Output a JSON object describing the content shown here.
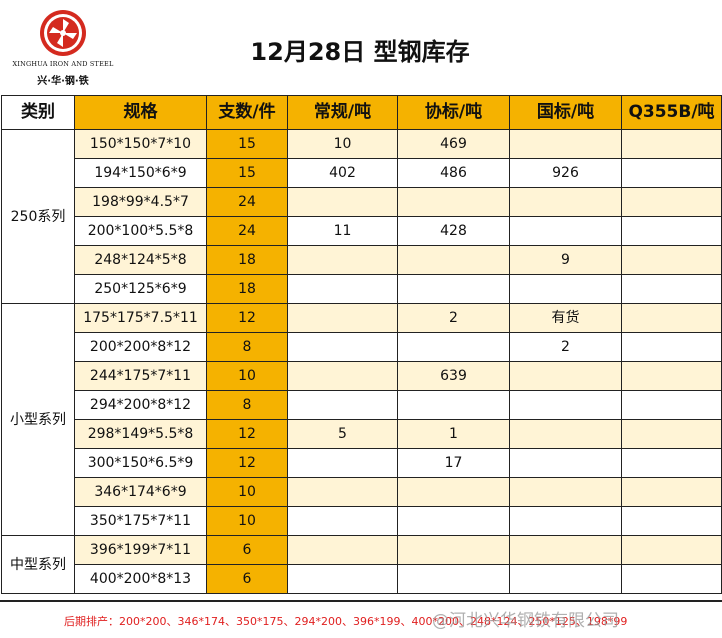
{
  "logo": {
    "brand_en": "XINGHUA IRON AND STEEL",
    "brand_cn": "兴·华·钢·铁",
    "logo_color": "#d42a1f"
  },
  "title": "12月28日 型钢库存",
  "headers": {
    "category": "类别",
    "spec": "规格",
    "count": "支数/件",
    "regular": "常规/吨",
    "assoc": "协标/吨",
    "national": "国标/吨",
    "q355b": "Q355B/吨"
  },
  "categories": [
    {
      "name": "250系列",
      "rowspan": 6
    },
    {
      "name": "小型系列",
      "rowspan": 8
    },
    {
      "name": "中型系列",
      "rowspan": 2
    }
  ],
  "rows": [
    {
      "spec": "150*150*7*10",
      "count": "15",
      "regular": "10",
      "assoc": "469",
      "national": "",
      "q355b": ""
    },
    {
      "spec": "194*150*6*9",
      "count": "15",
      "regular": "402",
      "assoc": "486",
      "national": "926",
      "q355b": ""
    },
    {
      "spec": "198*99*4.5*7",
      "count": "24",
      "regular": "",
      "assoc": "",
      "national": "",
      "q355b": ""
    },
    {
      "spec": "200*100*5.5*8",
      "count": "24",
      "regular": "11",
      "assoc": "428",
      "national": "",
      "q355b": ""
    },
    {
      "spec": "248*124*5*8",
      "count": "18",
      "regular": "",
      "assoc": "",
      "national": "9",
      "q355b": ""
    },
    {
      "spec": "250*125*6*9",
      "count": "18",
      "regular": "",
      "assoc": "",
      "national": "",
      "q355b": ""
    },
    {
      "spec": "175*175*7.5*11",
      "count": "12",
      "regular": "",
      "assoc": "2",
      "national": "有货",
      "q355b": ""
    },
    {
      "spec": "200*200*8*12",
      "count": "8",
      "regular": "",
      "assoc": "",
      "national": "2",
      "q355b": ""
    },
    {
      "spec": "244*175*7*11",
      "count": "10",
      "regular": "",
      "assoc": "639",
      "national": "",
      "q355b": ""
    },
    {
      "spec": "294*200*8*12",
      "count": "8",
      "regular": "",
      "assoc": "",
      "national": "",
      "q355b": ""
    },
    {
      "spec": "298*149*5.5*8",
      "count": "12",
      "regular": "5",
      "assoc": "1",
      "national": "",
      "q355b": ""
    },
    {
      "spec": "300*150*6.5*9",
      "count": "12",
      "regular": "",
      "assoc": "17",
      "national": "",
      "q355b": ""
    },
    {
      "spec": "346*174*6*9",
      "count": "10",
      "regular": "",
      "assoc": "",
      "national": "",
      "q355b": ""
    },
    {
      "spec": "350*175*7*11",
      "count": "10",
      "regular": "",
      "assoc": "",
      "national": "",
      "q355b": ""
    },
    {
      "spec": "396*199*7*11",
      "count": "6",
      "regular": "",
      "assoc": "",
      "national": "",
      "q355b": ""
    },
    {
      "spec": "400*200*8*13",
      "count": "6",
      "regular": "",
      "assoc": "",
      "national": "",
      "q355b": ""
    }
  ],
  "footer": {
    "text": "后期排产：200*200、346*174、350*175、294*200、396*199、400*200、248*124、250*125、198*99",
    "watermark": "@河北兴华钢铁有限公司"
  },
  "colors": {
    "header_orange": "#f5b200",
    "row_tint": "#fff4d6",
    "footer_red": "#e02020"
  }
}
